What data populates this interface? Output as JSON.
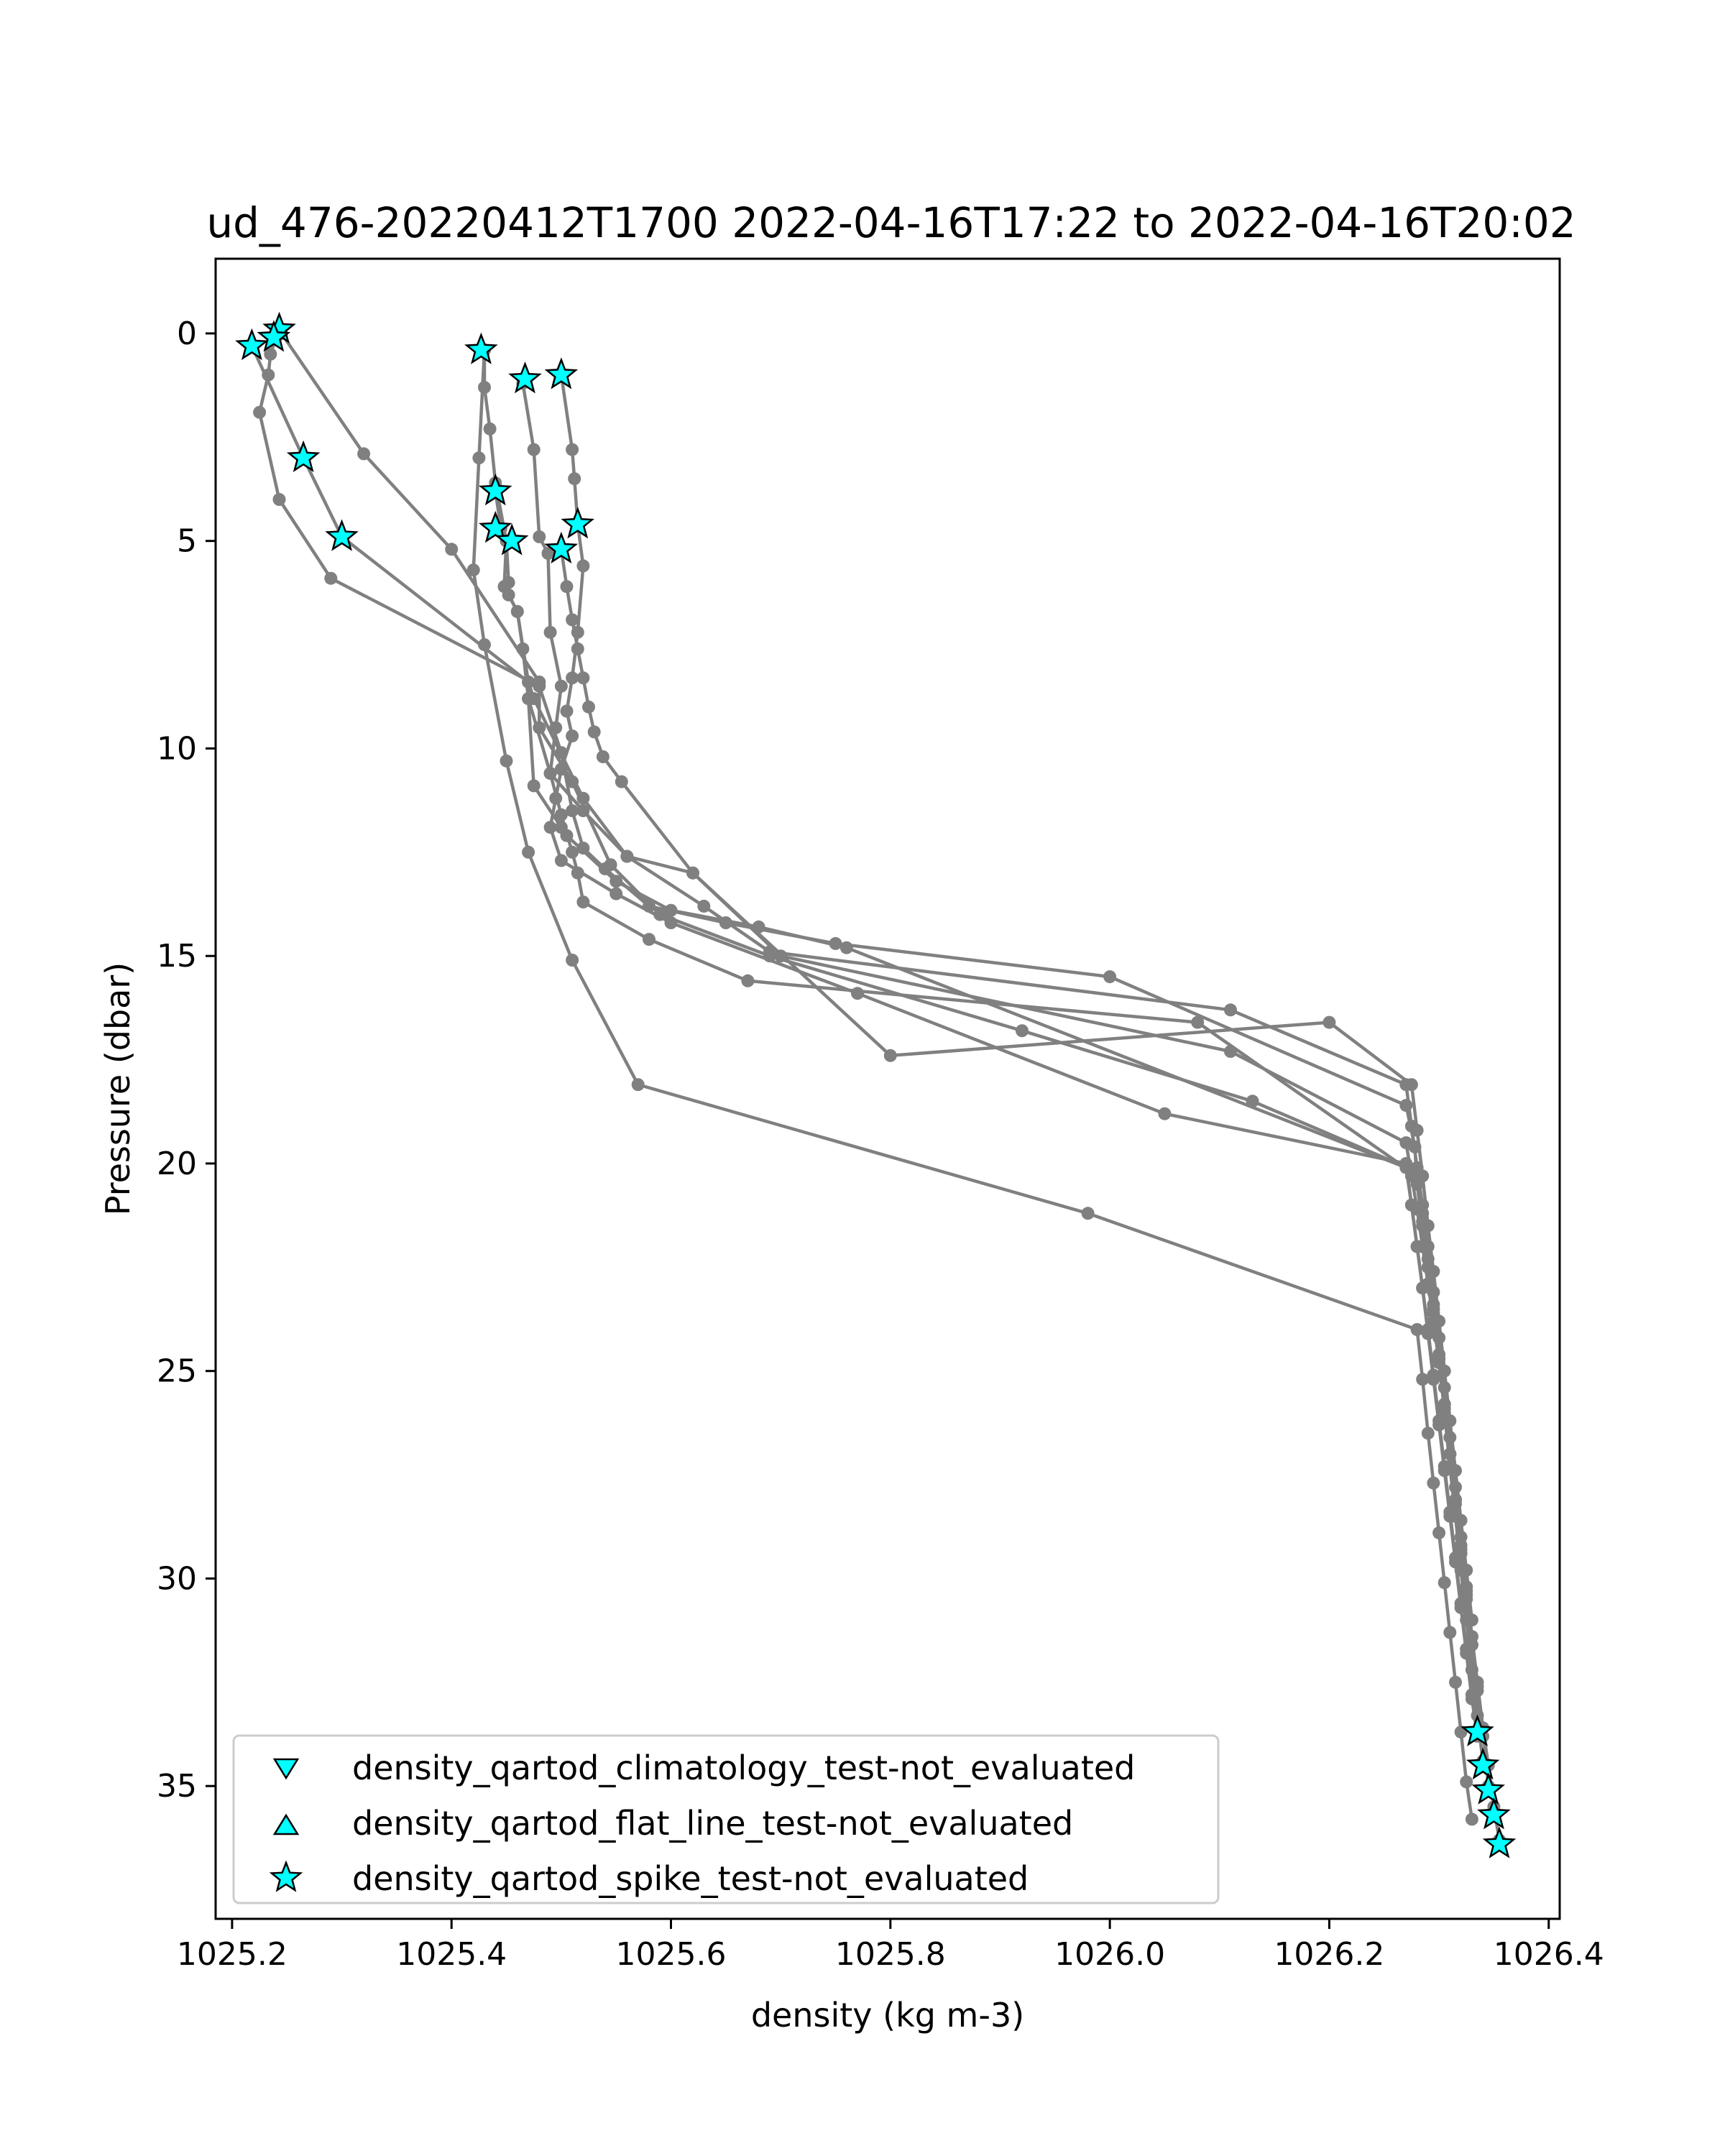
{
  "chart_data": {
    "type": "scatter",
    "title": "ud_476-20220412T1700 2022-04-16T17:22 to 2022-04-16T20:02",
    "xlabel": "density (kg m-3)",
    "ylabel": "Pressure (dbar)",
    "xlim": [
      1025.185,
      1026.41
    ],
    "ylim": [
      38.2,
      -1.8
    ],
    "y_inverted": true,
    "grid": false,
    "x_ticks": [
      "1025.2",
      "1025.4",
      "1025.6",
      "1025.8",
      "1026.0",
      "1026.2",
      "1026.4"
    ],
    "x_tick_values": [
      1025.2,
      1025.4,
      1025.6,
      1025.8,
      1026.0,
      1026.2,
      1026.4
    ],
    "y_ticks": [
      "0",
      "5",
      "10",
      "15",
      "20",
      "25",
      "30",
      "35"
    ],
    "y_tick_values": [
      0,
      5,
      10,
      15,
      20,
      25,
      30,
      35
    ],
    "legend": {
      "position": "lower-left",
      "entries": [
        {
          "label": "density_qartod_climatology_test-not_evaluated",
          "marker": "triangle-down"
        },
        {
          "label": "density_qartod_flat_line_test-not_evaluated",
          "marker": "triangle-up"
        },
        {
          "label": "density_qartod_spike_test-not_evaluated",
          "marker": "star"
        }
      ]
    },
    "colors": {
      "profile_line": "#808080",
      "flag_marker_fill": "#00ffff",
      "flag_marker_edge": "#000000"
    },
    "profiles": [
      {
        "x": [
          1025.24,
          1025.235,
          1025.233,
          1025.225,
          1025.243,
          1025.29,
          1025.48,
          1025.5,
          1025.51,
          1025.52,
          1025.54,
          1025.58,
          1025.65,
          1025.75,
          1026.0,
          1026.27,
          1026.278,
          1026.28,
          1026.285,
          1026.29,
          1026.295,
          1026.3,
          1026.305,
          1026.31,
          1026.315,
          1026.32,
          1026.325,
          1026.33,
          1026.335,
          1026.34,
          1026.345,
          1026.35,
          1026.355
        ],
        "y": [
          0.1,
          0.5,
          1.0,
          1.9,
          4.0,
          5.9,
          8.5,
          10.1,
          11.5,
          12.4,
          12.9,
          13.8,
          14.2,
          14.7,
          15.5,
          18.6,
          19.6,
          20.5,
          21.5,
          22.5,
          23.5,
          24.6,
          25.8,
          27.0,
          28.2,
          29.4,
          30.5,
          31.6,
          32.6,
          33.6,
          34.5,
          35.5,
          36.3
        ]
      },
      {
        "x": [
          1025.245,
          1025.32,
          1025.4,
          1025.48,
          1025.48,
          1025.51,
          1025.545,
          1025.59,
          1025.69,
          1025.92,
          1026.13,
          1026.28,
          1026.285,
          1026.29,
          1026.295,
          1026.3,
          1026.305,
          1026.31,
          1026.315,
          1026.32,
          1026.325,
          1026.33,
          1026.335,
          1026.34
        ],
        "y": [
          0.0,
          2.9,
          5.2,
          8.4,
          9.5,
          10.8,
          12.8,
          14.0,
          15.0,
          16.8,
          18.5,
          20.2,
          21.2,
          22.3,
          23.4,
          24.7,
          26.0,
          27.3,
          28.5,
          29.8,
          31.0,
          32.2,
          33.3,
          34.4
        ]
      },
      {
        "x": [
          1025.218,
          1025.265,
          1025.3,
          1025.47,
          1025.47,
          1025.49,
          1025.52,
          1025.56,
          1025.63,
          1025.69,
          1026.11,
          1026.27,
          1026.275,
          1026.28,
          1026.285,
          1026.29,
          1026.295,
          1026.3,
          1026.305,
          1026.31,
          1026.315,
          1026.32,
          1026.325,
          1026.33,
          1026.335,
          1026.34,
          1026.345
        ],
        "y": [
          0.3,
          3.0,
          4.9,
          8.4,
          8.8,
          10.6,
          11.5,
          12.6,
          13.8,
          14.9,
          16.3,
          18.1,
          19.1,
          20.1,
          21.0,
          22.0,
          23.1,
          24.2,
          25.4,
          26.6,
          27.8,
          29.0,
          30.2,
          31.4,
          32.5,
          33.6,
          35.0
        ]
      },
      {
        "x": [
          1025.43,
          1025.43,
          1025.435,
          1025.44,
          1025.45,
          1025.452,
          1025.452,
          1025.46,
          1025.47,
          1025.475,
          1025.52,
          1025.56,
          1025.62,
          1025.7,
          1026.11,
          1026.27,
          1026.275,
          1026.28,
          1026.285,
          1026.29,
          1026.295,
          1026.3,
          1026.305,
          1026.31,
          1026.315,
          1026.32,
          1026.325,
          1026.33,
          1026.335
        ],
        "y": [
          0.4,
          1.3,
          2.3,
          3.6,
          5.0,
          6.0,
          6.3,
          6.7,
          8.4,
          8.8,
          11.2,
          12.6,
          13.0,
          15.0,
          17.3,
          19.5,
          20.3,
          21.1,
          22.0,
          22.9,
          23.8,
          24.8,
          25.9,
          27.0,
          28.1,
          29.2,
          30.3,
          31.4,
          33.7
        ]
      },
      {
        "x": [
          1025.44,
          1025.445,
          1025.45,
          1025.448,
          1025.46,
          1025.465,
          1025.47,
          1025.475,
          1025.5,
          1025.505,
          1025.55,
          1025.6,
          1025.68,
          1025.76,
          1026.27,
          1026.275,
          1026.28,
          1026.285,
          1026.29,
          1026.295,
          1026.3,
          1026.305,
          1026.31,
          1026.315,
          1026.32,
          1026.325,
          1026.33
        ],
        "y": [
          3.8,
          4.7,
          5.0,
          6.1,
          6.7,
          7.6,
          8.8,
          10.9,
          11.9,
          12.1,
          13.2,
          13.9,
          14.3,
          14.8,
          20.1,
          21.0,
          22.0,
          23.0,
          24.0,
          25.1,
          26.2,
          27.3,
          28.4,
          29.5,
          30.6,
          31.7,
          32.8
        ]
      },
      {
        "x": [
          1025.465,
          1025.475,
          1025.48,
          1025.488,
          1025.49,
          1025.5,
          1025.495,
          1025.49,
          1025.5,
          1025.51,
          1025.515,
          1025.52,
          1025.58,
          1025.67,
          1026.08,
          1026.28,
          1026.285,
          1026.29,
          1026.295,
          1026.3,
          1026.305,
          1026.31,
          1026.315,
          1026.32,
          1026.325,
          1026.33,
          1026.335,
          1026.34
        ],
        "y": [
          1.2,
          2.8,
          4.9,
          5.3,
          7.2,
          8.5,
          9.5,
          10.6,
          11.6,
          12.5,
          13.0,
          13.7,
          14.6,
          15.6,
          16.6,
          20.3,
          21.4,
          22.5,
          23.6,
          24.7,
          25.8,
          27.0,
          28.1,
          29.3,
          30.4,
          31.6,
          32.7,
          33.8
        ]
      },
      {
        "x": [
          1025.5,
          1025.51,
          1025.512,
          1025.515,
          1025.52,
          1025.515,
          1025.51,
          1025.505,
          1025.51,
          1025.5,
          1025.495,
          1025.49,
          1025.5,
          1025.55,
          1025.6,
          1025.77,
          1026.05,
          1026.27,
          1026.275,
          1026.28,
          1026.285,
          1026.29,
          1026.295,
          1026.3,
          1026.305,
          1026.31,
          1026.315,
          1026.32,
          1026.325,
          1026.33,
          1026.335
        ],
        "y": [
          1.0,
          2.8,
          3.5,
          4.6,
          5.6,
          7.2,
          8.3,
          9.1,
          9.7,
          10.5,
          11.2,
          11.9,
          12.7,
          13.5,
          14.2,
          15.9,
          18.8,
          20.0,
          21.0,
          22.0,
          23.0,
          24.1,
          25.2,
          26.3,
          27.4,
          28.5,
          29.6,
          30.7,
          31.8,
          32.9,
          33.8
        ]
      },
      {
        "x": [
          1025.5,
          1025.505,
          1025.51,
          1025.515,
          1025.52,
          1025.525,
          1025.53,
          1025.538,
          1025.555,
          1025.62,
          1025.8,
          1026.2,
          1026.275,
          1026.28,
          1026.285,
          1026.29,
          1026.295,
          1026.3,
          1026.305,
          1026.31,
          1026.315,
          1026.32,
          1026.325,
          1026.33
        ],
        "y": [
          5.2,
          6.1,
          6.9,
          7.6,
          8.3,
          9.0,
          9.6,
          10.2,
          10.8,
          13.0,
          17.4,
          16.6,
          18.1,
          19.2,
          20.3,
          21.5,
          22.6,
          23.8,
          25.0,
          26.2,
          27.4,
          28.6,
          29.8,
          31.0
        ]
      },
      {
        "x": [
          1025.43,
          1025.425,
          1025.42,
          1025.43,
          1025.45,
          1025.47,
          1025.51,
          1025.57,
          1025.98,
          1026.28,
          1026.285,
          1026.29,
          1026.295,
          1026.3,
          1026.305,
          1026.31,
          1026.315,
          1026.32,
          1026.325,
          1026.33
        ],
        "y": [
          0.4,
          3.0,
          5.7,
          7.5,
          10.3,
          12.5,
          15.1,
          18.1,
          21.2,
          24.0,
          25.2,
          26.5,
          27.7,
          28.9,
          30.1,
          31.3,
          32.5,
          33.7,
          34.9,
          35.8
        ]
      }
    ],
    "spike_test_flags": {
      "x": [
        1025.243,
        1025.238,
        1025.218,
        1025.265,
        1025.3,
        1025.427,
        1025.467,
        1025.5,
        1025.44,
        1025.44,
        1025.455,
        1025.515,
        1025.5,
        1026.335,
        1026.34,
        1026.345,
        1026.35,
        1026.355
      ],
      "y": [
        -0.1,
        0.1,
        0.3,
        3.0,
        4.9,
        0.4,
        1.1,
        1.0,
        3.8,
        4.7,
        5.0,
        4.6,
        5.2,
        33.7,
        34.5,
        35.1,
        35.7,
        36.4
      ]
    }
  }
}
